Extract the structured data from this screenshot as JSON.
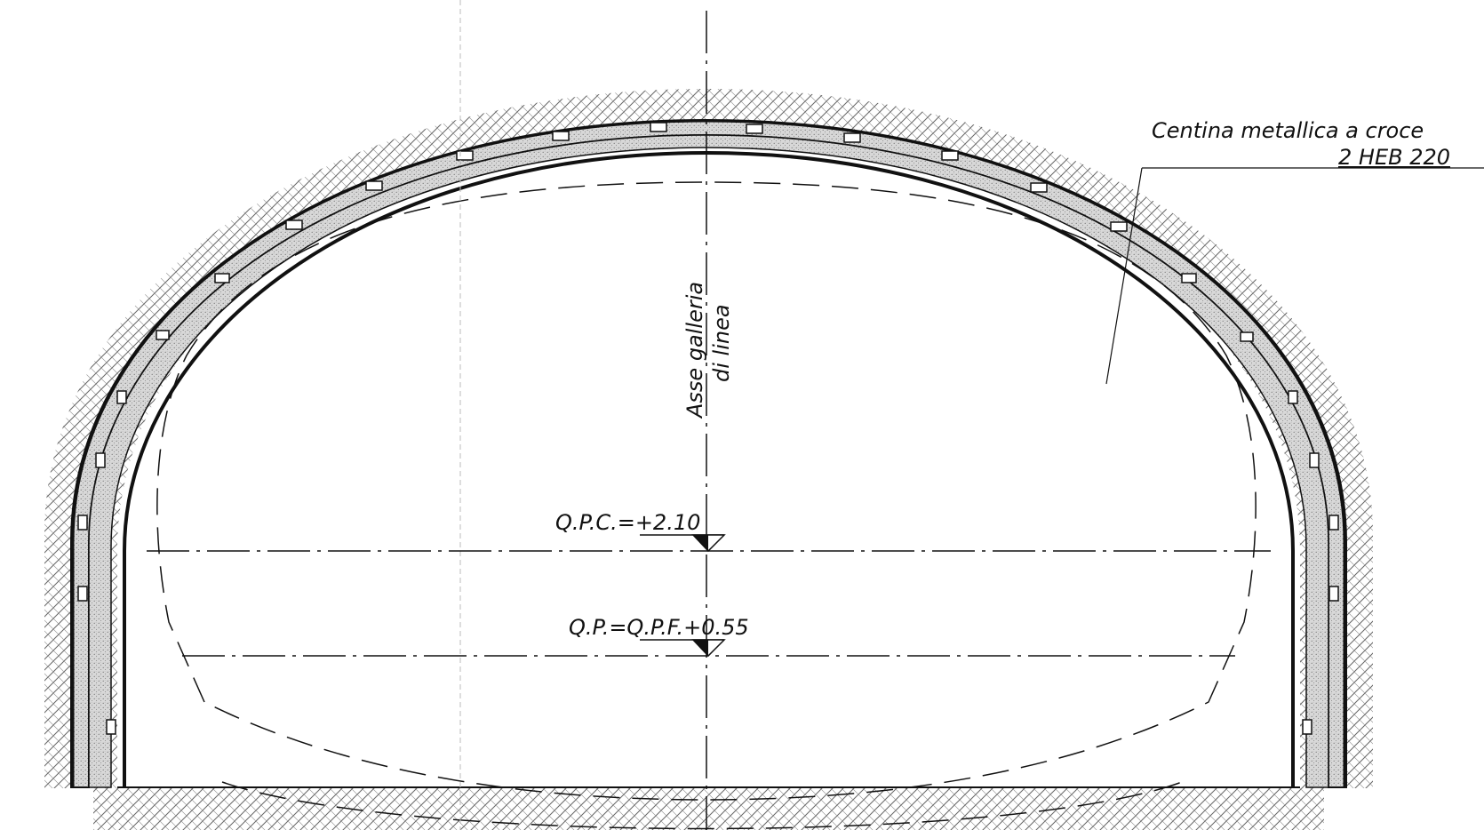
{
  "annotations": {
    "axis_label_line1": "Asse galleria",
    "axis_label_line2": "di linea",
    "qpc_label": "Q.P.C.=+2.10",
    "qp_label": "Q.P.=Q.P.F.+0.55",
    "rib_label_line1": "Centina metallica a croce",
    "rib_label_line2": "2 HEB 220"
  },
  "colors": {
    "ink": "#111111",
    "rock_hatch": "#555555",
    "shotcrete": "#bdbdbd",
    "background": "#ffffff"
  }
}
